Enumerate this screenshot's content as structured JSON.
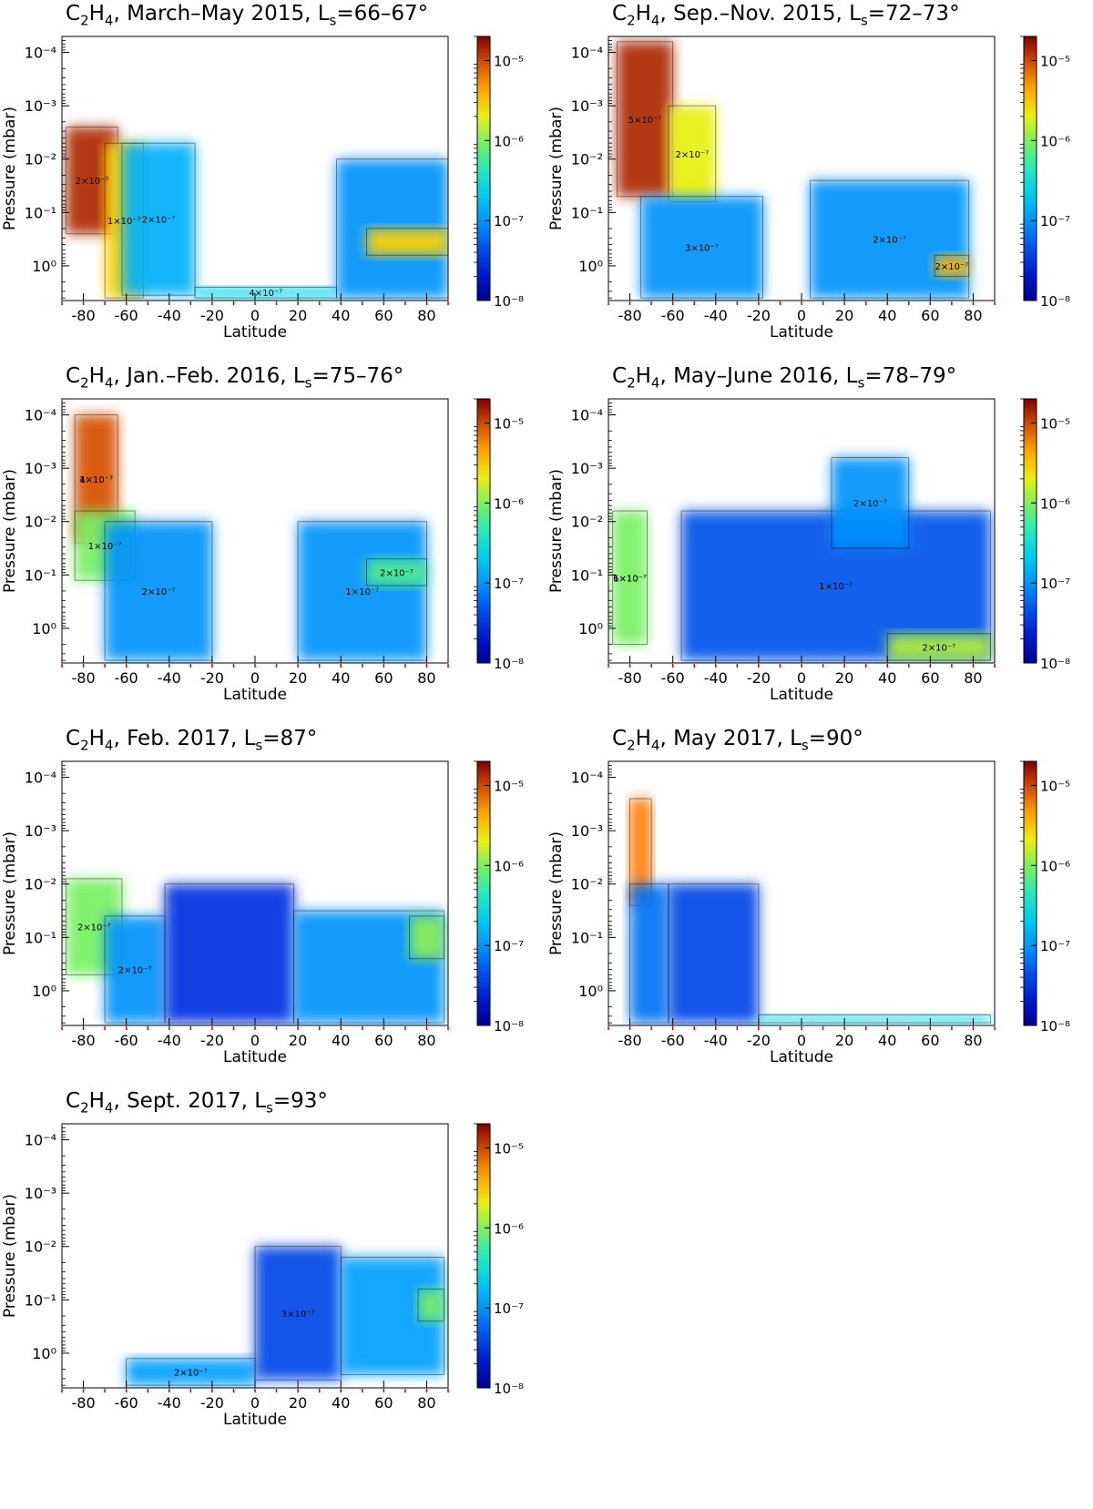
{
  "panels": [
    {
      "title_parts": [
        "C",
        "2",
        "H",
        "4",
        ", March–May 2015, L",
        "s",
        "=66–67°"
      ],
      "chart_data": {
        "type": "heatmap",
        "species": "C2H4",
        "period": "March–May 2015",
        "Ls": "66–67°",
        "xlabel": "Latitude",
        "ylabel": "Pressure (mbar)",
        "xlim": [
          -90,
          90
        ],
        "ylim_log10": [
          -4.3,
          0.65
        ],
        "x_ticks": [
          -80,
          -60,
          -40,
          -20,
          0,
          20,
          40,
          60,
          80
        ],
        "y_ticks": [
          "10⁻⁴",
          "10⁻³",
          "10⁻²",
          "10⁻¹",
          "10⁰"
        ],
        "colorbar": {
          "min": "10⁻⁸",
          "max": "2×10⁻⁵",
          "ticks": [
            "10⁻⁸",
            "10⁻⁷",
            "10⁻⁶",
            "10⁻⁵"
          ]
        },
        "contour_labels": [
          "2×10⁻⁷",
          "1×10⁻⁷",
          "2×10⁻⁷",
          "4×10⁻⁷"
        ],
        "regions": [
          {
            "lat": [
              -88,
              -64
            ],
            "logp_top": -2.6,
            "logp_bottom": -0.6,
            "level": 0.95
          },
          {
            "lat": [
              -70,
              -52
            ],
            "logp_top": -2.3,
            "logp_bottom": 0.6,
            "level": 0.75
          },
          {
            "lat": [
              -62,
              -28
            ],
            "logp_top": -2.3,
            "logp_bottom": 0.55,
            "level": 0.35
          },
          {
            "lat": [
              -28,
              38
            ],
            "logp_top": 0.4,
            "logp_bottom": 0.6,
            "level": 0.42
          },
          {
            "lat": [
              38,
              90
            ],
            "logp_top": -2.0,
            "logp_bottom": 0.6,
            "level": 0.3
          },
          {
            "lat": [
              52,
              90
            ],
            "logp_top": -0.7,
            "logp_bottom": -0.2,
            "level": 0.75
          }
        ]
      }
    },
    {
      "title_parts": [
        "C",
        "2",
        "H",
        "4",
        ", Sep.–Nov. 2015, L",
        "s",
        "=72–73°"
      ],
      "chart_data": {
        "type": "heatmap",
        "species": "C2H4",
        "period": "Sep.–Nov. 2015",
        "Ls": "72–73°",
        "xlabel": "Latitude",
        "ylabel": "Pressure (mbar)",
        "xlim": [
          -90,
          90
        ],
        "ylim_log10": [
          -4.3,
          0.65
        ],
        "x_ticks": [
          -80,
          -60,
          -40,
          -20,
          0,
          20,
          40,
          60,
          80
        ],
        "y_ticks": [
          "10⁻⁴",
          "10⁻³",
          "10⁻²",
          "10⁻¹",
          "10⁰"
        ],
        "colorbar": {
          "min": "10⁻⁸",
          "max": "2×10⁻⁵",
          "ticks": [
            "10⁻⁸",
            "10⁻⁷",
            "10⁻⁶",
            "10⁻⁵"
          ]
        },
        "contour_labels": [
          "5×10⁻⁷",
          "2×10⁻⁷",
          "3×10⁻⁷",
          "2×10⁻⁷",
          "2×10⁻⁷"
        ],
        "regions": [
          {
            "lat": [
              -86,
              -60
            ],
            "logp_top": -4.2,
            "logp_bottom": -1.3,
            "level": 0.95
          },
          {
            "lat": [
              -62,
              -40
            ],
            "logp_top": -3.0,
            "logp_bottom": -1.2,
            "level": 0.7
          },
          {
            "lat": [
              -75,
              -18
            ],
            "logp_top": -1.3,
            "logp_bottom": 0.6,
            "level": 0.3
          },
          {
            "lat": [
              4,
              78
            ],
            "logp_top": -1.6,
            "logp_bottom": 0.6,
            "level": 0.3
          },
          {
            "lat": [
              62,
              78
            ],
            "logp_top": -0.2,
            "logp_bottom": 0.2,
            "level": 0.78
          }
        ]
      }
    },
    {
      "title_parts": [
        "C",
        "2",
        "H",
        "4",
        ", Jan.–Feb. 2016, L",
        "s",
        "=75–76°"
      ],
      "chart_data": {
        "type": "heatmap",
        "species": "C2H4",
        "period": "Jan.–Feb. 2016",
        "Ls": "75–76°",
        "xlabel": "Latitude",
        "ylabel": "Pressure (mbar)",
        "xlim": [
          -90,
          90
        ],
        "ylim_log10": [
          -4.3,
          0.65
        ],
        "x_ticks": [
          -80,
          -60,
          -40,
          -20,
          0,
          20,
          40,
          60,
          80
        ],
        "y_ticks": [
          "10⁻⁴",
          "10⁻³",
          "10⁻²",
          "10⁻¹",
          "10⁰"
        ],
        "colorbar": {
          "min": "10⁻⁸",
          "max": "2×10⁻⁵",
          "ticks": [
            "10⁻⁸",
            "10⁻⁷",
            "10⁻⁶",
            "10⁻⁵"
          ]
        },
        "contour_labels": [
          "1×10⁻⁷",
          "1×10⁻⁷",
          "2×10⁻⁷",
          "1×10⁻⁷",
          "2×10⁻⁷",
          "4×10⁻⁷"
        ],
        "regions": [
          {
            "lat": [
              -84,
              -64
            ],
            "logp_top": -4.0,
            "logp_bottom": -1.6,
            "level": 0.9
          },
          {
            "lat": [
              -84,
              -56
            ],
            "logp_top": -2.2,
            "logp_bottom": -0.9,
            "level": 0.6
          },
          {
            "lat": [
              -70,
              -20
            ],
            "logp_top": -2.0,
            "logp_bottom": 0.6,
            "level": 0.3
          },
          {
            "lat": [
              20,
              80
            ],
            "logp_top": -2.0,
            "logp_bottom": 0.6,
            "level": 0.3
          },
          {
            "lat": [
              52,
              80
            ],
            "logp_top": -1.3,
            "logp_bottom": -0.8,
            "level": 0.55
          }
        ]
      }
    },
    {
      "title_parts": [
        "C",
        "2",
        "H",
        "4",
        ", May–June 2016, L",
        "s",
        "=78–79°"
      ],
      "chart_data": {
        "type": "heatmap",
        "species": "C2H4",
        "period": "May–June 2016",
        "Ls": "78–79°",
        "xlabel": "Latitude",
        "ylabel": "Pressure (mbar)",
        "xlim": [
          -90,
          90
        ],
        "ylim_log10": [
          -4.3,
          0.65
        ],
        "x_ticks": [
          -80,
          -60,
          -40,
          -20,
          0,
          20,
          40,
          60,
          80
        ],
        "y_ticks": [
          "10⁻⁴",
          "10⁻³",
          "10⁻²",
          "10⁻¹",
          "10⁰"
        ],
        "colorbar": {
          "min": "10⁻⁸",
          "max": "2×10⁻⁵",
          "ticks": [
            "10⁻⁸",
            "10⁻⁷",
            "10⁻⁶",
            "10⁻⁵"
          ]
        },
        "contour_labels": [
          "1×10⁻⁷",
          "1×10⁻⁷",
          "2×10⁻⁷",
          "2×10⁻⁷",
          "6×10⁻⁷"
        ],
        "regions": [
          {
            "lat": [
              -88,
              -72
            ],
            "logp_top": -2.2,
            "logp_bottom": 0.3,
            "level": 0.6
          },
          {
            "lat": [
              -56,
              88
            ],
            "logp_top": -2.2,
            "logp_bottom": 0.6,
            "level": 0.2
          },
          {
            "lat": [
              14,
              50
            ],
            "logp_top": -3.2,
            "logp_bottom": -1.5,
            "level": 0.3
          },
          {
            "lat": [
              40,
              88
            ],
            "logp_top": 0.1,
            "logp_bottom": 0.6,
            "level": 0.65
          }
        ]
      }
    },
    {
      "title_parts": [
        "C",
        "2",
        "H",
        "4",
        ", Feb. 2017, L",
        "s",
        "=87°"
      ],
      "chart_data": {
        "type": "heatmap",
        "species": "C2H4",
        "period": "Feb. 2017",
        "Ls": "87°",
        "xlabel": "Latitude",
        "ylabel": "Pressure (mbar)",
        "xlim": [
          -90,
          90
        ],
        "ylim_log10": [
          -4.3,
          0.65
        ],
        "x_ticks": [
          -80,
          -60,
          -40,
          -20,
          0,
          20,
          40,
          60,
          80
        ],
        "y_ticks": [
          "10⁻⁴",
          "10⁻³",
          "10⁻²",
          "10⁻¹",
          "10⁰"
        ],
        "colorbar": {
          "min": "10⁻⁸",
          "max": "2×10⁻⁵",
          "ticks": [
            "10⁻⁸",
            "10⁻⁷",
            "10⁻⁶",
            "10⁻⁵"
          ]
        },
        "contour_labels": [
          "2×10⁻⁷",
          "2×10⁻⁷"
        ],
        "regions": [
          {
            "lat": [
              -88,
              -62
            ],
            "logp_top": -2.1,
            "logp_bottom": -0.3,
            "level": 0.6
          },
          {
            "lat": [
              -70,
              -42
            ],
            "logp_top": -1.4,
            "logp_bottom": 0.6,
            "level": 0.3
          },
          {
            "lat": [
              -42,
              18
            ],
            "logp_top": -2.0,
            "logp_bottom": 0.6,
            "level": 0.15
          },
          {
            "lat": [
              18,
              88
            ],
            "logp_top": -1.5,
            "logp_bottom": 0.6,
            "level": 0.3
          },
          {
            "lat": [
              72,
              88
            ],
            "logp_top": -1.4,
            "logp_bottom": -0.6,
            "level": 0.62
          }
        ]
      }
    },
    {
      "title_parts": [
        "C",
        "2",
        "H",
        "4",
        ", May 2017, L",
        "s",
        "=90°"
      ],
      "chart_data": {
        "type": "heatmap",
        "species": "C2H4",
        "period": "May 2017",
        "Ls": "90°",
        "xlabel": "Latitude",
        "ylabel": "Pressure (mbar)",
        "xlim": [
          -90,
          90
        ],
        "ylim_log10": [
          -4.3,
          0.65
        ],
        "x_ticks": [
          -80,
          -60,
          -40,
          -20,
          0,
          20,
          40,
          60,
          80
        ],
        "y_ticks": [
          "10⁻⁴",
          "10⁻³",
          "10⁻²",
          "10⁻¹",
          "10⁰"
        ],
        "colorbar": {
          "min": "10⁻⁸",
          "max": "2×10⁻⁵",
          "ticks": [
            "10⁻⁸",
            "10⁻⁷",
            "10⁻⁶",
            "10⁻⁵"
          ]
        },
        "contour_labels": [],
        "regions": [
          {
            "lat": [
              -80,
              -70
            ],
            "logp_top": -3.6,
            "logp_bottom": -1.6,
            "level": 0.85
          },
          {
            "lat": [
              -80,
              -62
            ],
            "logp_top": -2.0,
            "logp_bottom": 0.6,
            "level": 0.25
          },
          {
            "lat": [
              -62,
              -20
            ],
            "logp_top": -2.0,
            "logp_bottom": 0.6,
            "level": 0.18
          },
          {
            "lat": [
              -20,
              88
            ],
            "logp_top": 0.45,
            "logp_bottom": 0.6,
            "level": 0.42
          }
        ]
      }
    },
    {
      "title_parts": [
        "C",
        "2",
        "H",
        "4",
        ", Sept. 2017, L",
        "s",
        "=93°"
      ],
      "chart_data": {
        "type": "heatmap",
        "species": "C2H4",
        "period": "Sept. 2017",
        "Ls": "93°",
        "xlabel": "Latitude",
        "ylabel": "Pressure (mbar)",
        "xlim": [
          -90,
          90
        ],
        "ylim_log10": [
          -4.3,
          0.65
        ],
        "x_ticks": [
          -80,
          -60,
          -40,
          -20,
          0,
          20,
          40,
          60,
          80
        ],
        "y_ticks": [
          "10⁻⁴",
          "10⁻³",
          "10⁻²",
          "10⁻¹",
          "10⁰"
        ],
        "colorbar": {
          "min": "10⁻⁸",
          "max": "2×10⁻⁵",
          "ticks": [
            "10⁻⁸",
            "10⁻⁷",
            "10⁻⁶",
            "10⁻⁵"
          ]
        },
        "contour_labels": [
          "2×10⁻⁷",
          "3×10⁻⁷"
        ],
        "regions": [
          {
            "lat": [
              -60,
              0
            ],
            "logp_top": 0.1,
            "logp_bottom": 0.6,
            "level": 0.32
          },
          {
            "lat": [
              0,
              40
            ],
            "logp_top": -2.0,
            "logp_bottom": 0.5,
            "level": 0.18
          },
          {
            "lat": [
              40,
              88
            ],
            "logp_top": -1.8,
            "logp_bottom": 0.4,
            "level": 0.32
          },
          {
            "lat": [
              76,
              88
            ],
            "logp_top": -1.2,
            "logp_bottom": -0.6,
            "level": 0.6
          }
        ]
      }
    }
  ]
}
